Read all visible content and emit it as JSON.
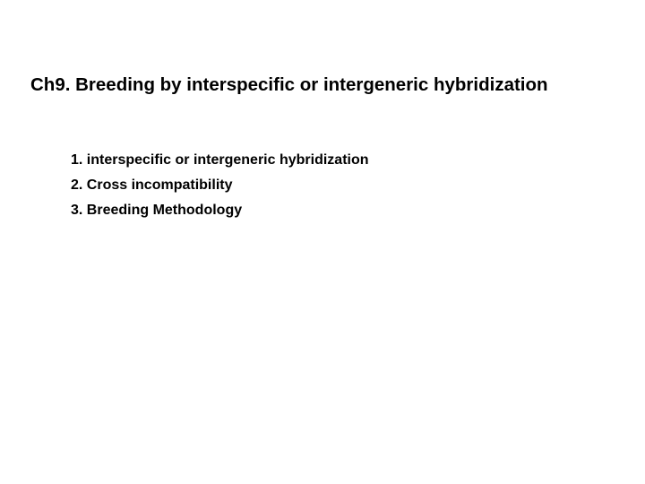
{
  "slide": {
    "title": "Ch9. Breeding by interspecific or intergeneric hybridization",
    "items": [
      "1. interspecific or intergeneric hybridization",
      "2. Cross incompatibility",
      "3. Breeding Methodology"
    ]
  },
  "styling": {
    "background_color": "#ffffff",
    "text_color": "#000000",
    "title_fontsize": 20.5,
    "title_fontweight": "bold",
    "item_fontsize": 16,
    "item_fontweight": "bold",
    "font_family": "Arial"
  }
}
